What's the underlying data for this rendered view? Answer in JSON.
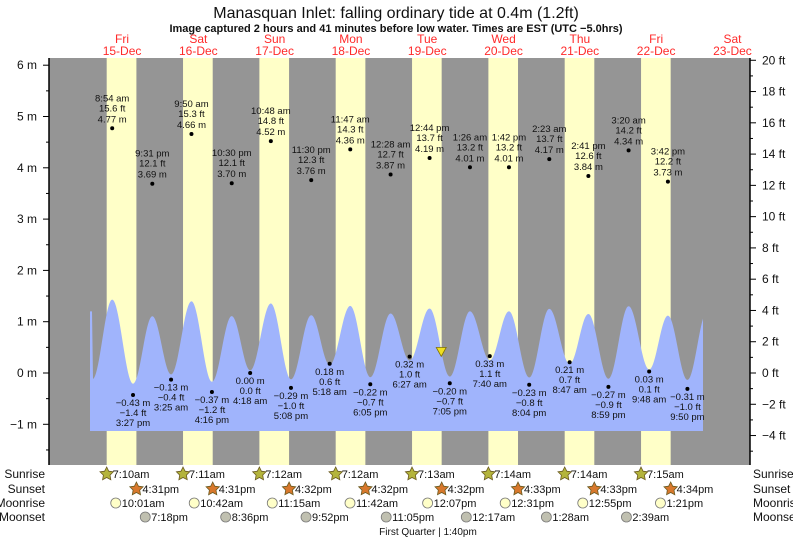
{
  "chart_data": {
    "type": "area",
    "title": "Manasquan Inlet: falling  ordinary tide at 0.4m (1.2ft)",
    "subtitle": "Image captured 2 hours and 41 minutes before low water. Times are EST (UTC −5.0hrs)",
    "colors": {
      "night": "#959595",
      "day": "#ffffc8",
      "water": "#a0b4fc",
      "day_label": "#ff2a2a",
      "now_marker": "#f0e020"
    },
    "days": [
      {
        "dow": "Fri",
        "date": "15-Dec"
      },
      {
        "dow": "Sat",
        "date": "16-Dec"
      },
      {
        "dow": "Sun",
        "date": "17-Dec"
      },
      {
        "dow": "Mon",
        "date": "18-Dec"
      },
      {
        "dow": "Tue",
        "date": "19-Dec"
      },
      {
        "dow": "Wed",
        "date": "20-Dec"
      },
      {
        "dow": "Thu",
        "date": "21-Dec"
      },
      {
        "dow": "Fri",
        "date": "22-Dec"
      },
      {
        "dow": "Sat",
        "date": "23-Dec"
      }
    ],
    "y_left": {
      "unit": "m",
      "ticks": [
        "6 m",
        "5 m",
        "4 m",
        "3 m",
        "2 m",
        "1 m",
        "0 m",
        "−1 m"
      ],
      "values": [
        6,
        5,
        4,
        3,
        2,
        1,
        0,
        -1
      ]
    },
    "y_right": {
      "unit": "ft",
      "ticks": [
        "20 ft",
        "18 ft",
        "16 ft",
        "14 ft",
        "12 ft",
        "10 ft",
        "8 ft",
        "6 ft",
        "4 ft",
        "2 ft",
        "0 ft",
        "−2 ft",
        "−4 ft"
      ],
      "values": [
        20,
        18,
        16,
        14,
        12,
        10,
        8,
        6,
        4,
        2,
        0,
        -2,
        -4
      ]
    },
    "now_marker": {
      "level_m": 0.4,
      "level_ft": 1.2,
      "day": 4,
      "time": "4:24 pm"
    },
    "extremes": [
      {
        "day": 0,
        "type": "high",
        "time": "8:54 am",
        "ft": "15.6 ft",
        "m": "4.77 m",
        "value": 4.77
      },
      {
        "day": 0,
        "type": "low",
        "time": "3:27 pm",
        "ft": "−1.4 ft",
        "m": "−0.43 m",
        "value": -0.43
      },
      {
        "day": 0,
        "type": "high",
        "time": "9:31 pm",
        "ft": "12.1 ft",
        "m": "3.69 m",
        "value": 3.69
      },
      {
        "day": 1,
        "type": "low",
        "time": "3:25 am",
        "ft": "−0.4 ft",
        "m": "−0.13 m",
        "value": -0.13
      },
      {
        "day": 1,
        "type": "high",
        "time": "9:50 am",
        "ft": "15.3 ft",
        "m": "4.66 m",
        "value": 4.66
      },
      {
        "day": 1,
        "type": "low",
        "time": "4:16 pm",
        "ft": "−1.2 ft",
        "m": "−0.37 m",
        "value": -0.37
      },
      {
        "day": 1,
        "type": "high",
        "time": "10:30 pm",
        "ft": "12.1 ft",
        "m": "3.70 m",
        "value": 3.7
      },
      {
        "day": 2,
        "type": "low",
        "time": "4:18 am",
        "ft": "0.0 ft",
        "m": "0.00 m",
        "value": 0.0
      },
      {
        "day": 2,
        "type": "high",
        "time": "10:48 am",
        "ft": "14.8 ft",
        "m": "4.52 m",
        "value": 4.52
      },
      {
        "day": 2,
        "type": "low",
        "time": "5:08 pm",
        "ft": "−1.0 ft",
        "m": "−0.29 m",
        "value": -0.29
      },
      {
        "day": 2,
        "type": "high",
        "time": "11:30 pm",
        "ft": "12.3 ft",
        "m": "3.76 m",
        "value": 3.76
      },
      {
        "day": 3,
        "type": "low",
        "time": "5:18 am",
        "ft": "0.6 ft",
        "m": "0.18 m",
        "value": 0.18
      },
      {
        "day": 3,
        "type": "high",
        "time": "11:47 am",
        "ft": "14.3 ft",
        "m": "4.36 m",
        "value": 4.36
      },
      {
        "day": 3,
        "type": "low",
        "time": "6:05 pm",
        "ft": "−0.7 ft",
        "m": "−0.22 m",
        "value": -0.22
      },
      {
        "day": 4,
        "type": "high",
        "time": "12:28 am",
        "ft": "12.7 ft",
        "m": "3.87 m",
        "value": 3.87
      },
      {
        "day": 4,
        "type": "low",
        "time": "6:27 am",
        "ft": "1.0 ft",
        "m": "0.32 m",
        "value": 0.32
      },
      {
        "day": 4,
        "type": "high",
        "time": "12:44 pm",
        "ft": "13.7 ft",
        "m": "4.19 m",
        "value": 4.19
      },
      {
        "day": 4,
        "type": "low",
        "time": "7:05 pm",
        "ft": "−0.7 ft",
        "m": "−0.20 m",
        "value": -0.2
      },
      {
        "day": 5,
        "type": "high",
        "time": "1:26 am",
        "ft": "13.2 ft",
        "m": "4.01 m",
        "value": 4.01
      },
      {
        "day": 5,
        "type": "low",
        "time": "7:40 am",
        "ft": "1.1 ft",
        "m": "0.33 m",
        "value": 0.33
      },
      {
        "day": 5,
        "type": "high",
        "time": "1:42 pm",
        "ft": "13.2 ft",
        "m": "4.01 m",
        "value": 4.01
      },
      {
        "day": 5,
        "type": "low",
        "time": "8:04 pm",
        "ft": "−0.8 ft",
        "m": "−0.23 m",
        "value": -0.23
      },
      {
        "day": 6,
        "type": "high",
        "time": "2:23 am",
        "ft": "13.7 ft",
        "m": "4.17 m",
        "value": 4.17
      },
      {
        "day": 6,
        "type": "low",
        "time": "8:47 am",
        "ft": "0.7 ft",
        "m": "0.21 m",
        "value": 0.21
      },
      {
        "day": 6,
        "type": "high",
        "time": "2:41 pm",
        "ft": "12.6 ft",
        "m": "3.84 m",
        "value": 3.84
      },
      {
        "day": 6,
        "type": "low",
        "time": "8:59 pm",
        "ft": "−0.9 ft",
        "m": "−0.27 m",
        "value": -0.27
      },
      {
        "day": 7,
        "type": "high",
        "time": "3:20 am",
        "ft": "14.2 ft",
        "m": "4.34 m",
        "value": 4.34
      },
      {
        "day": 7,
        "type": "low",
        "time": "9:48 am",
        "ft": "0.1 ft",
        "m": "0.03 m",
        "value": 0.03
      },
      {
        "day": 7,
        "type": "high",
        "time": "3:42 pm",
        "ft": "12.2 ft",
        "m": "3.73 m",
        "value": 3.73
      },
      {
        "day": 7,
        "type": "low",
        "time": "9:50 pm",
        "ft": "−1.0 ft",
        "m": "−0.31 m",
        "value": -0.31
      }
    ],
    "astro": {
      "row_labels": {
        "sunrise": "Sunrise",
        "sunset": "Sunset",
        "moonrise": "Moonrise",
        "moonset": "Moonset"
      },
      "sunrise": [
        {
          "day": 0,
          "time": "7:10am"
        },
        {
          "day": 1,
          "time": "7:11am"
        },
        {
          "day": 2,
          "time": "7:12am"
        },
        {
          "day": 3,
          "time": "7:12am"
        },
        {
          "day": 4,
          "time": "7:13am"
        },
        {
          "day": 5,
          "time": "7:14am"
        },
        {
          "day": 6,
          "time": "7:14am"
        },
        {
          "day": 7,
          "time": "7:15am"
        }
      ],
      "sunset": [
        {
          "day": 0,
          "time": "4:31pm"
        },
        {
          "day": 1,
          "time": "4:31pm"
        },
        {
          "day": 2,
          "time": "4:32pm"
        },
        {
          "day": 3,
          "time": "4:32pm"
        },
        {
          "day": 4,
          "time": "4:32pm"
        },
        {
          "day": 5,
          "time": "4:33pm"
        },
        {
          "day": 6,
          "time": "4:33pm"
        },
        {
          "day": 7,
          "time": "4:34pm"
        }
      ],
      "moonrise": [
        {
          "day": 0,
          "time": "10:01am"
        },
        {
          "day": 1,
          "time": "10:42am"
        },
        {
          "day": 2,
          "time": "11:15am"
        },
        {
          "day": 3,
          "time": "11:42am"
        },
        {
          "day": 4,
          "time": "12:07pm"
        },
        {
          "day": 5,
          "time": "12:31pm"
        },
        {
          "day": 6,
          "time": "12:55pm"
        },
        {
          "day": 7,
          "time": "1:21pm"
        }
      ],
      "moonset": [
        {
          "day": 0,
          "time": "7:18pm"
        },
        {
          "day": 1,
          "time": "8:36pm"
        },
        {
          "day": 2,
          "time": "9:52pm"
        },
        {
          "day": 3,
          "time": "11:05pm"
        },
        {
          "day": 5,
          "time": "12:17am"
        },
        {
          "day": 6,
          "time": "1:28am"
        },
        {
          "day": 7,
          "time": "2:39am"
        }
      ],
      "colors": {
        "sunrise": "#b4b43c",
        "sunset": "#d8782c",
        "moonrise": "#ffffc8",
        "moonset": "#c0c0b0"
      },
      "moon_phase": "First Quarter | 1:40pm"
    }
  }
}
